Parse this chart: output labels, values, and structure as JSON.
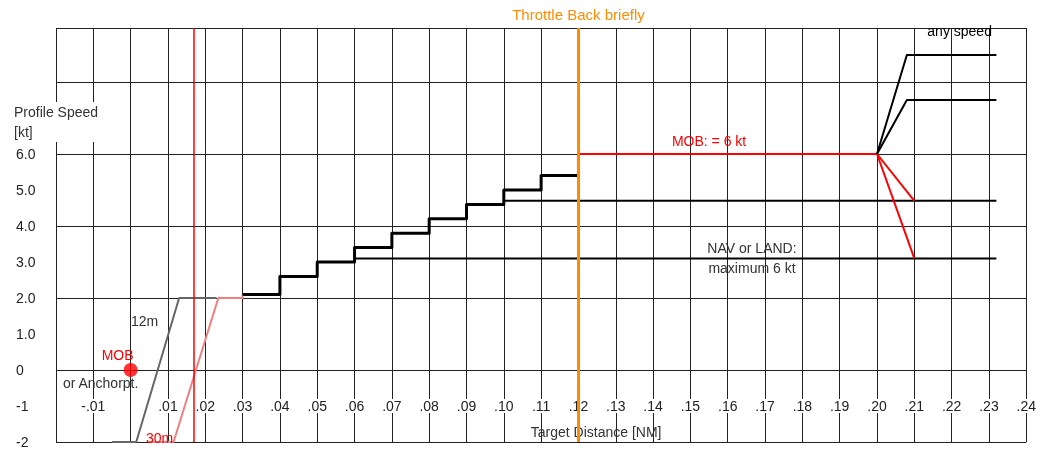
{
  "chart_data": {
    "type": "line",
    "xlabel": "Target Distance [NM]",
    "ylabel": "Profile Speed\n[kt]",
    "xlim": [
      -0.02,
      0.24
    ],
    "ylim": [
      -2,
      9.5
    ],
    "xticks": [
      {
        "value": -0.01,
        "label": "-.01"
      },
      {
        "value": 0,
        "label": null
      },
      {
        "value": 0.01,
        "label": ".01"
      },
      {
        "value": 0.02,
        "label": ".02"
      },
      {
        "value": 0.03,
        "label": ".03"
      },
      {
        "value": 0.04,
        "label": ".04"
      },
      {
        "value": 0.05,
        "label": ".05"
      },
      {
        "value": 0.06,
        "label": ".06"
      },
      {
        "value": 0.07,
        "label": ".07"
      },
      {
        "value": 0.08,
        "label": ".08"
      },
      {
        "value": 0.09,
        "label": ".09"
      },
      {
        "value": 0.1,
        "label": ".10"
      },
      {
        "value": 0.11,
        "label": ".11"
      },
      {
        "value": 0.12,
        "label": ".12"
      },
      {
        "value": 0.13,
        "label": ".13"
      },
      {
        "value": 0.14,
        "label": ".14"
      },
      {
        "value": 0.15,
        "label": ".15"
      },
      {
        "value": 0.16,
        "label": ".16"
      },
      {
        "value": 0.17,
        "label": ".17"
      },
      {
        "value": 0.18,
        "label": ".18"
      },
      {
        "value": 0.19,
        "label": ".19"
      },
      {
        "value": 0.2,
        "label": ".20"
      },
      {
        "value": 0.21,
        "label": ".21"
      },
      {
        "value": 0.22,
        "label": ".22"
      },
      {
        "value": 0.23,
        "label": ".23"
      },
      {
        "value": 0.24,
        "label": ".24"
      }
    ],
    "yticks": [
      -2,
      -1,
      0,
      {
        "value": 1,
        "label": "1.0"
      },
      {
        "value": 2,
        "label": "2.0"
      },
      {
        "value": 3,
        "label": "3.0"
      },
      {
        "value": 4,
        "label": "4.0"
      },
      {
        "value": 5,
        "label": "5.0"
      },
      {
        "value": 6,
        "label": "6.0"
      }
    ],
    "grid": true,
    "marker": "none",
    "series": [
      {
        "color": "#666666",
        "x": [
          -0.005,
          0.0015,
          0.013,
          0.023
        ],
        "values": [
          -2,
          -2,
          2,
          2
        ]
      },
      {
        "color": "#f08080",
        "x": [
          0.005,
          0.0115,
          0.0235,
          0.03,
          0.03
        ],
        "values": [
          -2,
          -2,
          2,
          2,
          2.1
        ]
      },
      {
        "type": "step",
        "color": "#000000",
        "x": [
          0.03,
          0.04,
          0.05,
          0.06,
          0.07,
          0.08,
          0.09,
          0.1,
          0.11,
          0.12
        ],
        "values": [
          2.1,
          2.6,
          3.0,
          3.4,
          3.8,
          4.2,
          4.6,
          5.0,
          5.4,
          6.0
        ]
      },
      {
        "color": "#000000",
        "x": [
          0.06,
          0.232
        ],
        "values": [
          3.1,
          3.1
        ]
      },
      {
        "color": "#000000",
        "x": [
          0.1,
          0.232
        ],
        "values": [
          4.7,
          4.7
        ]
      },
      {
        "color": "#ff0000",
        "x": [
          0.12,
          0.2
        ],
        "values": [
          6,
          6
        ]
      },
      {
        "color": "#ff0000",
        "x": [
          0.2,
          0.21
        ],
        "values": [
          6,
          4.7
        ]
      },
      {
        "color": "#ff0000",
        "x": [
          0.2,
          0.21
        ],
        "values": [
          6,
          3.1
        ]
      },
      {
        "color": "#000000",
        "x": [
          0.2,
          0.208,
          0.232
        ],
        "values": [
          6,
          8.75,
          8.75
        ]
      },
      {
        "color": "#000000",
        "x": [
          0.2,
          0.208,
          0.232
        ],
        "values": [
          6,
          7.5,
          7.5
        ]
      },
      {
        "type": "scatter",
        "marker": "circle",
        "color": "#ff0000",
        "x": [
          0
        ],
        "values": [
          0
        ]
      }
    ],
    "ref_lines": [
      {
        "axis": "x",
        "value": 0.12,
        "label": "Throttle Back briefly",
        "color": "#ff8c00"
      },
      {
        "axis": "x",
        "value": 0.017,
        "color": "#ff0000"
      }
    ],
    "annotations": [
      {
        "text": "MOB",
        "x": 0,
        "y": 0
      },
      {
        "text": "or Anchorpt.",
        "x": 0,
        "y": 0
      },
      "12m",
      "30m",
      {
        "text": "MOB: = 6 kt",
        "x": 0.155,
        "y": 6
      },
      {
        "text": "NAV or LAND:\nmaximum 6 kt",
        "x": 0.1665,
        "y": 3.1
      },
      {
        "text": "any speed",
        "x": 0.22,
        "y": 8.75
      }
    ]
  }
}
